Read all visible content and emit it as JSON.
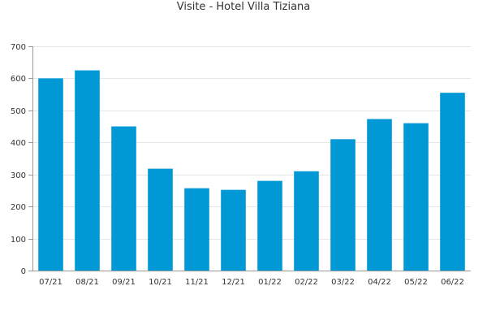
{
  "chart_data": {
    "type": "bar",
    "title": "Visite - Hotel Villa Tiziana",
    "xlabel": "",
    "ylabel": "",
    "categories": [
      "07/21",
      "08/21",
      "09/21",
      "10/21",
      "11/21",
      "12/21",
      "01/22",
      "02/22",
      "03/22",
      "04/22",
      "05/22",
      "06/22"
    ],
    "values": [
      600,
      625,
      450,
      318,
      257,
      252,
      280,
      310,
      410,
      473,
      460,
      555
    ],
    "ylim": [
      0,
      700
    ],
    "yticks": [
      0,
      100,
      200,
      300,
      400,
      500,
      600,
      700
    ],
    "grid": true,
    "legend": "none",
    "bar_color": "#0099d6",
    "grid_color": "#e6e6e6",
    "axis_color": "#999999",
    "text_color": "#333333"
  }
}
